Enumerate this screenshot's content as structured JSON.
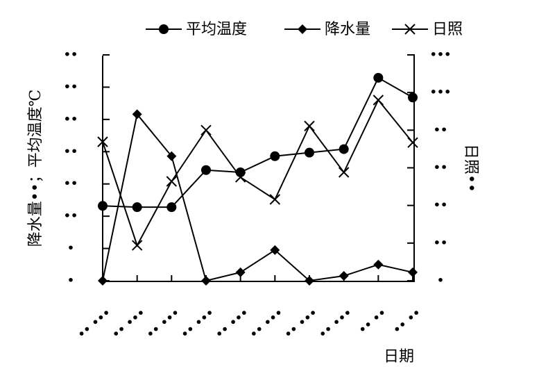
{
  "chart_data": {
    "type": "line",
    "y_label": "降水量••；平均温度℃",
    "y2_label": "日照••",
    "x_label": "日期",
    "categories": [
      "•• •••",
      "•• •••",
      "•• •••",
      "•• •••",
      "•• •••",
      "•• •••",
      "•• •••",
      "•• •••",
      "•• ••",
      "•• ••"
    ],
    "series": [
      {
        "name": "平均温度",
        "color": "#000000",
        "marker": "circle",
        "values": [
          2.32,
          2.28,
          2.28,
          3.43,
          3.36,
          3.86,
          3.97,
          4.08,
          6.29,
          5.68
        ]
      },
      {
        "name": "降水量",
        "color": "#000000",
        "marker": "diamond",
        "values": [
          0,
          5.16,
          3.86,
          0,
          0.26,
          0.95,
          0,
          0.15,
          0.5,
          0.26
        ]
      },
      {
        "name": "日照",
        "color": "#000000",
        "marker": "x",
        "axis": "y2",
        "values": [
          3.69,
          0.94,
          2.64,
          4.0,
          2.75,
          2.16,
          4.11,
          2.88,
          4.8,
          3.67
        ]
      }
    ],
    "ylim": [
      0,
      7
    ],
    "yticks": [
      {
        "value": 0,
        "label": "•"
      },
      {
        "value": 1,
        "label": "•"
      },
      {
        "value": 2,
        "label": "••"
      },
      {
        "value": 3,
        "label": "••"
      },
      {
        "value": 4,
        "label": "••"
      },
      {
        "value": 5,
        "label": "••"
      },
      {
        "value": 6,
        "label": "••"
      },
      {
        "value": 7,
        "label": "••"
      }
    ],
    "y2lim": [
      0,
      6
    ],
    "y2ticks": [
      {
        "value": 0,
        "label": "•"
      },
      {
        "value": 1,
        "label": "••"
      },
      {
        "value": 2,
        "label": "••"
      },
      {
        "value": 3,
        "label": "••"
      },
      {
        "value": 4,
        "label": "••"
      },
      {
        "value": 5,
        "label": "•••"
      },
      {
        "value": 6,
        "label": "•••"
      }
    ],
    "legend": "top"
  }
}
